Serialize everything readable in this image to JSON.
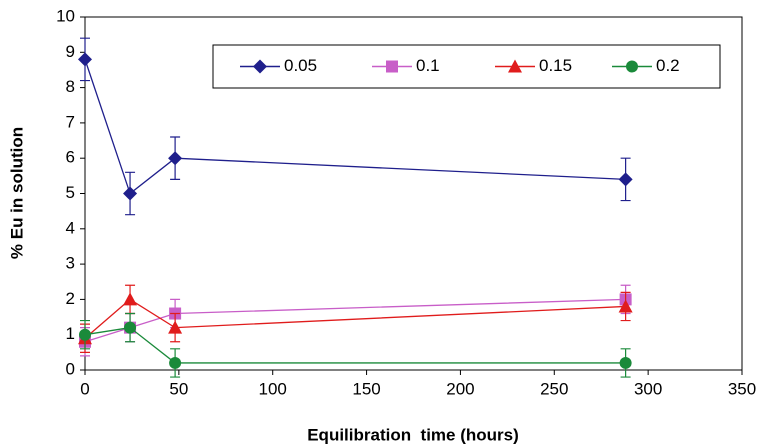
{
  "chart_data": {
    "type": "line",
    "x_label": "Equilibration  time (hours)",
    "y_label": "% Eu in solution",
    "x": [
      0,
      24,
      48,
      288
    ],
    "series": [
      {
        "name": "0.05",
        "color": "#1f1f8c",
        "marker": "diamond",
        "values": [
          8.8,
          5.0,
          6.0,
          5.4
        ],
        "errors": [
          0.6,
          0.6,
          0.6,
          0.6
        ]
      },
      {
        "name": "0.1",
        "color": "#c85ec8",
        "marker": "square",
        "values": [
          0.8,
          1.2,
          1.6,
          2.0
        ],
        "errors": [
          0.4,
          0.4,
          0.4,
          0.4
        ]
      },
      {
        "name": "0.15",
        "color": "#e01c1c",
        "marker": "triangle",
        "values": [
          0.9,
          2.0,
          1.2,
          1.8
        ],
        "errors": [
          0.4,
          0.4,
          0.4,
          0.4
        ]
      },
      {
        "name": "0.2",
        "color": "#1a8a3a",
        "marker": "circle",
        "values": [
          1.0,
          1.2,
          0.2,
          0.2
        ],
        "errors": [
          0.4,
          0.4,
          0.4,
          0.4
        ]
      }
    ],
    "xlim": [
      0,
      350
    ],
    "xticks": [
      0,
      50,
      100,
      150,
      200,
      250,
      300,
      350
    ],
    "ylim": [
      0,
      10
    ],
    "yticks": [
      0,
      1,
      2,
      3,
      4,
      5,
      6,
      7,
      8,
      9,
      10
    ],
    "legend": "top-right",
    "grid": false
  }
}
